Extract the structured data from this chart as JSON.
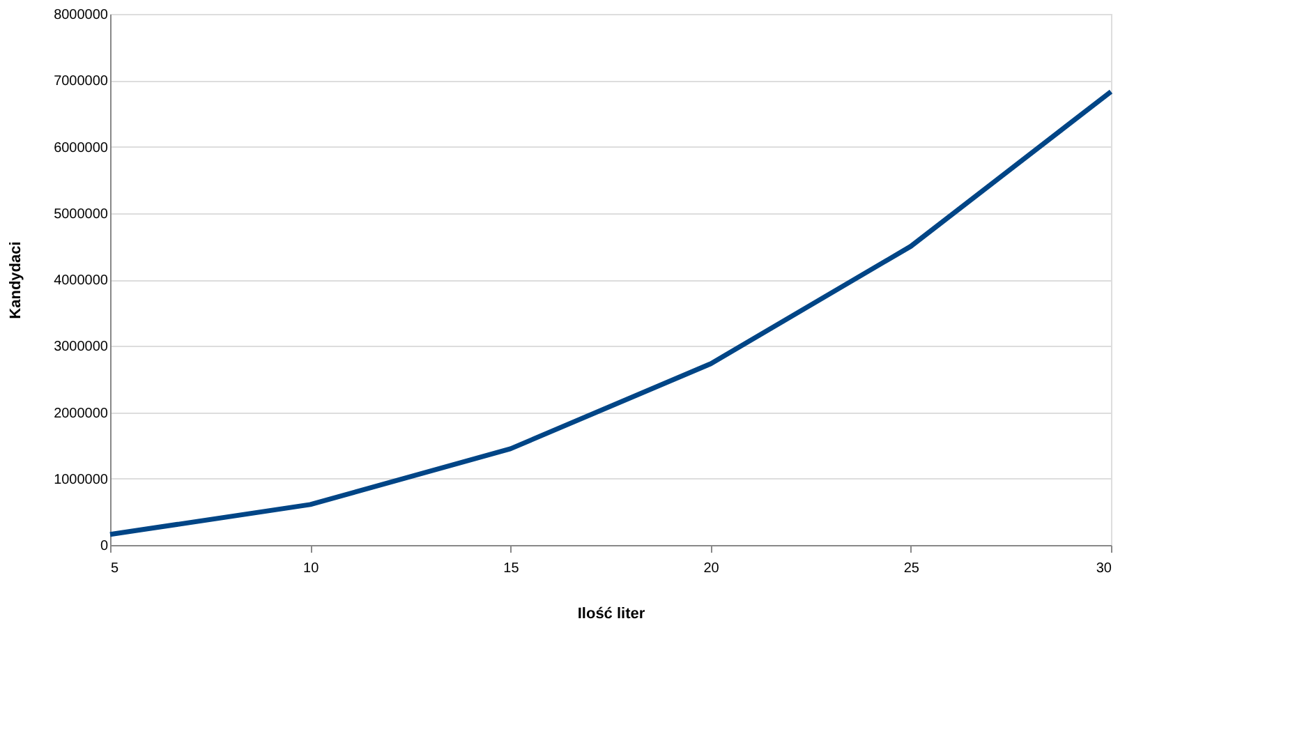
{
  "chart_data": {
    "type": "line",
    "xlabel": "Ilość liter",
    "ylabel": "Kandydaci",
    "x": [
      5,
      10,
      15,
      20,
      25,
      30
    ],
    "series": [
      {
        "color": "#004586",
        "values": [
          160000,
          610000,
          1450000,
          2730000,
          4500000,
          6830000
        ]
      }
    ],
    "xlim": [
      5,
      30
    ],
    "xticks": [
      5,
      10,
      15,
      20,
      25,
      30
    ],
    "ylim": [
      0,
      8000000
    ],
    "yticks": [
      0,
      1000000,
      2000000,
      3000000,
      4000000,
      5000000,
      6000000,
      7000000,
      8000000
    ],
    "grid": "y",
    "legend": false,
    "marker": "none",
    "line_style": "solid"
  }
}
